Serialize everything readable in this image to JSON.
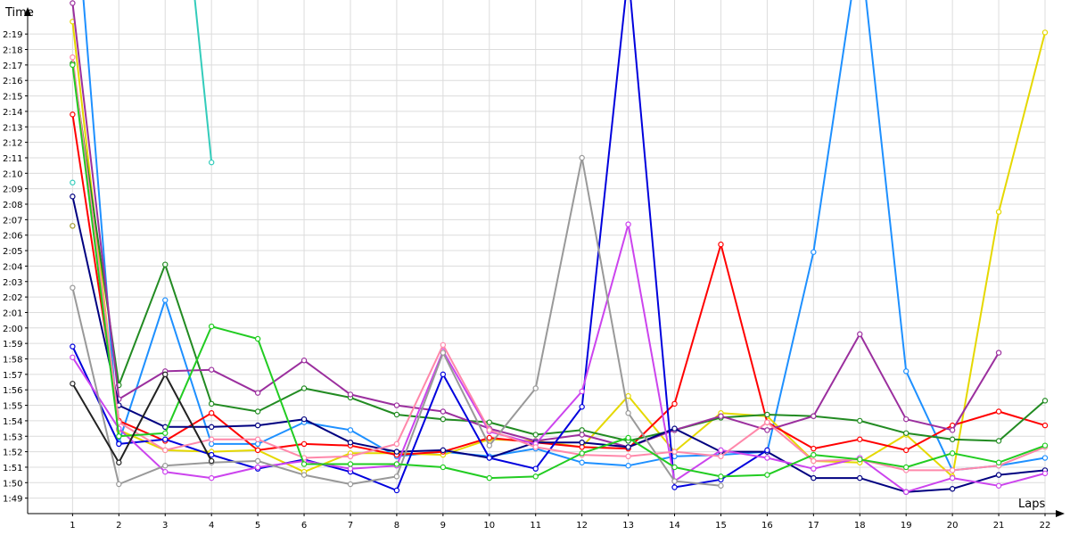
{
  "chart_data": {
    "type": "line",
    "xlabel": "Laps",
    "ylabel": "Time",
    "x": [
      1,
      2,
      3,
      4,
      5,
      6,
      7,
      8,
      9,
      10,
      11,
      12,
      13,
      14,
      15,
      16,
      17,
      18,
      19,
      20,
      21,
      22
    ],
    "xlim": [
      0.03,
      22
    ],
    "ylim": [
      108.0,
      141.2
    ],
    "yticks": [
      {
        "value": 109,
        "label": "1:49"
      },
      {
        "value": 110,
        "label": "1:50"
      },
      {
        "value": 111,
        "label": "1:51"
      },
      {
        "value": 112,
        "label": "1:52"
      },
      {
        "value": 113,
        "label": "1:53"
      },
      {
        "value": 114,
        "label": "1:54"
      },
      {
        "value": 115,
        "label": "1:55"
      },
      {
        "value": 116,
        "label": "1:56"
      },
      {
        "value": 117,
        "label": "1:57"
      },
      {
        "value": 118,
        "label": "1:58"
      },
      {
        "value": 119,
        "label": "1:59"
      },
      {
        "value": 120,
        "label": "2:00"
      },
      {
        "value": 121,
        "label": "2:01"
      },
      {
        "value": 122,
        "label": "2:02"
      },
      {
        "value": 123,
        "label": "2:03"
      },
      {
        "value": 124,
        "label": "2:04"
      },
      {
        "value": 125,
        "label": "2:05"
      },
      {
        "value": 126,
        "label": "2:06"
      },
      {
        "value": 127,
        "label": "2:07"
      },
      {
        "value": 128,
        "label": "2:08"
      },
      {
        "value": 129,
        "label": "2:09"
      },
      {
        "value": 130,
        "label": "2:10"
      },
      {
        "value": 131,
        "label": "2:11"
      },
      {
        "value": 132,
        "label": "2:12"
      },
      {
        "value": 133,
        "label": "2:13"
      },
      {
        "value": 134,
        "label": "2:14"
      },
      {
        "value": 135,
        "label": "2:15"
      },
      {
        "value": 136,
        "label": "2:16"
      },
      {
        "value": 137,
        "label": "2:17"
      },
      {
        "value": 138,
        "label": "2:18"
      },
      {
        "value": 139,
        "label": "2:19"
      }
    ],
    "grid": true,
    "legend": "none",
    "series": [
      {
        "color": "#1e90ff",
        "values": [
          150,
          112.6,
          121.8,
          112.5,
          112.5,
          113.9,
          113.4,
          111.7,
          112.0,
          111.7,
          112.2,
          111.3,
          111.1,
          111.7,
          111.8,
          112.0,
          124.9,
          145,
          117.2,
          110.8,
          111.1,
          111.6
        ]
      },
      {
        "color": "#e5d800",
        "values": [
          139.8,
          113.4,
          112.1,
          112.0,
          112.1,
          110.7,
          111.9,
          111.9,
          111.8,
          112.8,
          112.7,
          112.3,
          115.6,
          112.0,
          114.5,
          114.3,
          111.4,
          111.3,
          113.1,
          110.4,
          127.5,
          139.1
        ]
      },
      {
        "color": "#ff0000",
        "values": [
          133.8,
          114.0,
          112.7,
          114.5,
          112.1,
          112.5,
          112.4,
          111.8,
          112.0,
          112.9,
          112.6,
          112.3,
          112.2,
          115.1,
          125.4,
          113.9,
          112.2,
          112.8,
          112.1,
          113.7,
          114.6,
          113.7
        ]
      },
      {
        "color": "#228b22",
        "values": [
          137.1,
          116.3,
          124.1,
          115.1,
          114.6,
          116.1,
          115.5,
          114.4,
          114.1,
          113.9,
          113.1,
          113.4,
          112.7,
          113.4,
          114.2,
          114.4,
          114.3,
          114.0,
          113.2,
          112.8,
          112.7,
          115.3
        ]
      },
      {
        "color": "#9b2f9e",
        "values": [
          141.0,
          115.4,
          117.2,
          117.3,
          115.8,
          117.9,
          115.7,
          115.0,
          114.6,
          113.5,
          112.7,
          113.1,
          112.3,
          113.4,
          114.3,
          113.4,
          114.3,
          119.6,
          114.1,
          113.4,
          118.4,
          null
        ]
      },
      {
        "color": "#000080",
        "values": [
          128.5,
          115.0,
          113.6,
          113.6,
          113.7,
          114.1,
          112.6,
          112.0,
          112.1,
          111.6,
          112.6,
          112.6,
          112.3,
          113.5,
          112.0,
          112.0,
          110.3,
          110.3,
          109.4,
          109.6,
          110.5,
          110.8
        ]
      },
      {
        "color": "#0000dd",
        "values": [
          118.8,
          112.5,
          112.8,
          111.8,
          110.9,
          111.5,
          110.7,
          109.5,
          117.0,
          111.6,
          110.9,
          114.9,
          143,
          109.7,
          110.2,
          112.1,
          null,
          null,
          null,
          null,
          null,
          null
        ]
      },
      {
        "color": "#cc44ee",
        "values": [
          118.1,
          113.5,
          110.7,
          110.3,
          111.0,
          111.4,
          110.9,
          111.1,
          118.5,
          113.3,
          112.5,
          115.9,
          126.7,
          110.1,
          112.1,
          111.6,
          110.9,
          111.6,
          109.4,
          110.3,
          109.8,
          110.6
        ]
      },
      {
        "color": "#999999",
        "values": [
          122.6,
          109.9,
          111.1,
          111.3,
          111.4,
          110.5,
          109.9,
          110.4,
          118.4,
          112.4,
          116.1,
          131.0,
          114.5,
          110.1,
          109.8,
          null,
          null,
          null,
          null,
          null,
          null,
          null
        ]
      },
      {
        "color": "#ff88aa",
        "values": [
          137.5,
          113.9,
          112.1,
          112.8,
          112.8,
          111.6,
          111.7,
          112.5,
          118.9,
          113.4,
          112.3,
          111.8,
          111.7,
          112.0,
          111.7,
          113.9,
          111.4,
          111.5,
          110.8,
          110.8,
          111.1,
          112.3
        ]
      },
      {
        "color": "#22cc22",
        "values": [
          137.0,
          113.0,
          113.2,
          120.1,
          119.3,
          111.2,
          111.2,
          111.2,
          111.0,
          110.3,
          110.4,
          111.9,
          112.9,
          111.0,
          110.4,
          110.5,
          111.8,
          111.5,
          111.0,
          111.9,
          111.3,
          112.4
        ]
      },
      {
        "color": "#222222",
        "values": [
          116.4,
          111.3,
          117.0,
          111.4,
          null,
          null,
          null,
          null,
          null,
          null,
          null,
          null,
          null,
          null,
          null,
          null,
          null,
          null,
          null,
          null,
          null,
          null
        ]
      },
      {
        "color": "#33ccbb",
        "values": [
          129.4,
          null,
          160,
          130.7,
          null,
          null,
          null,
          null,
          null,
          null,
          null,
          null,
          null,
          null,
          null,
          null,
          null,
          null,
          null,
          null,
          null,
          null
        ]
      },
      {
        "color": "#a09830",
        "values": [
          126.6,
          null,
          null,
          null,
          null,
          null,
          null,
          null,
          null,
          null,
          null,
          null,
          null,
          null,
          null,
          null,
          null,
          null,
          null,
          null,
          null,
          null
        ]
      }
    ]
  }
}
